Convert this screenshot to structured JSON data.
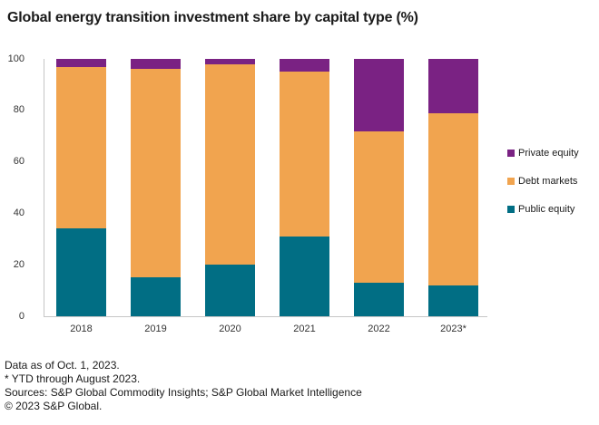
{
  "title": "Global energy transition investment share by capital type (%)",
  "chart_data": {
    "type": "bar",
    "stacked": true,
    "title": "Global energy transition investment share by capital type (%)",
    "categories": [
      "2018",
      "2019",
      "2020",
      "2021",
      "2022",
      "2023*"
    ],
    "series": [
      {
        "name": "Public equity",
        "color": "#016E84",
        "values": [
          34,
          15,
          20,
          31,
          13,
          12
        ]
      },
      {
        "name": "Debt markets",
        "color": "#F1A44F",
        "values": [
          63,
          81,
          78,
          64,
          59,
          67
        ]
      },
      {
        "name": "Private equity",
        "color": "#7A2283",
        "values": [
          3,
          4,
          2,
          5,
          28,
          21
        ]
      }
    ],
    "xlabel": "",
    "ylabel": "",
    "ylim": [
      0,
      100
    ],
    "yticks": [
      0,
      20,
      40,
      60,
      80,
      100
    ],
    "grid": false,
    "legend_position": "right",
    "legend_order": [
      "Private equity",
      "Debt markets",
      "Public equity"
    ]
  },
  "legend": {
    "items": [
      {
        "label": "Private equity",
        "color": "#7A2283"
      },
      {
        "label": "Debt markets",
        "color": "#F1A44F"
      },
      {
        "label": "Public equity",
        "color": "#016E84"
      }
    ]
  },
  "footer": {
    "line1": "Data as of Oct. 1, 2023.",
    "line2": "* YTD through August 2023.",
    "line3": "Sources: S&P Global Commodity Insights; S&P Global Market Intelligence",
    "line4": "© 2023 S&P Global."
  },
  "colors": {
    "public_equity": "#016E84",
    "debt_markets": "#F1A44F",
    "private_equity": "#7A2283",
    "axis_line": "#C6C6C6",
    "text": "#1A1A1A"
  }
}
